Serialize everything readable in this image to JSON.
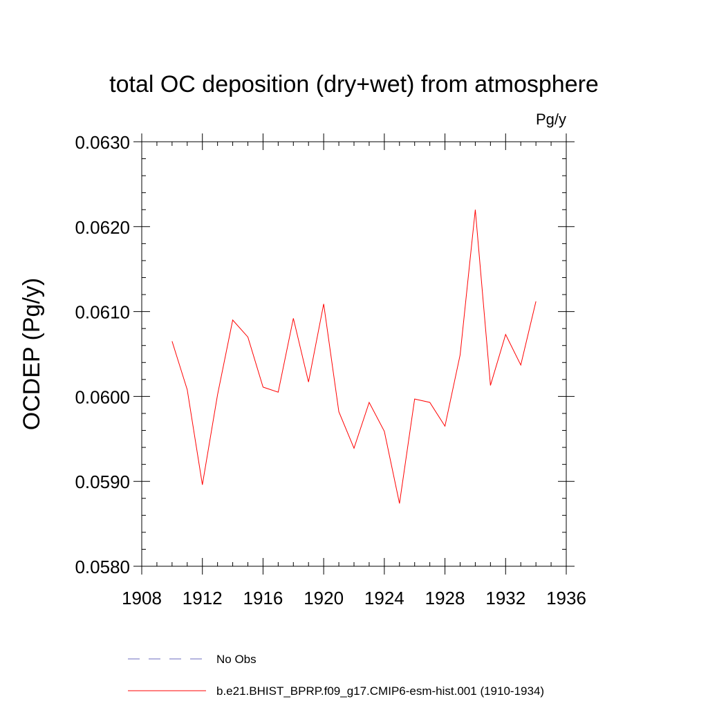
{
  "chart_data": {
    "type": "line",
    "title": "total OC deposition (dry+wet) from atmosphere",
    "units_label": "Pg/y",
    "ylabel": "OCDEP  (Pg/y)",
    "xlabel": "",
    "xlim": [
      1908,
      1936
    ],
    "ylim": [
      0.058,
      0.063
    ],
    "x_ticks": [
      1908,
      1912,
      1916,
      1920,
      1924,
      1928,
      1932,
      1936
    ],
    "x_tick_labels": [
      "1908",
      "1912",
      "1916",
      "1920",
      "1924",
      "1928",
      "1932",
      "1936"
    ],
    "y_ticks": [
      0.058,
      0.059,
      0.06,
      0.061,
      0.062,
      0.063
    ],
    "y_tick_labels": [
      "0.0580",
      "0.0590",
      "0.0600",
      "0.0610",
      "0.0620",
      "0.0630"
    ],
    "grid": false,
    "legend_position": "bottom",
    "series": [
      {
        "name": "No Obs",
        "color": "#6b6bbf",
        "dash": "dashed",
        "x": [],
        "values": []
      },
      {
        "name": "b.e21.BHIST_BPRP.f09_g17.CMIP6-esm-hist.001 (1910-1934)",
        "color": "#ff0000",
        "dash": "solid",
        "x": [
          1910,
          1911,
          1912,
          1913,
          1914,
          1915,
          1916,
          1917,
          1918,
          1919,
          1920,
          1921,
          1922,
          1923,
          1924,
          1925,
          1926,
          1927,
          1928,
          1929,
          1930,
          1931,
          1932,
          1933,
          1934
        ],
        "values": [
          0.06065,
          0.06008,
          0.05896,
          0.06002,
          0.0609,
          0.0607,
          0.06011,
          0.06005,
          0.06092,
          0.06017,
          0.06109,
          0.05982,
          0.05939,
          0.05993,
          0.05959,
          0.05874,
          0.05997,
          0.05993,
          0.05965,
          0.06049,
          0.0622,
          0.06013,
          0.06073,
          0.06037,
          0.06112
        ]
      }
    ]
  }
}
